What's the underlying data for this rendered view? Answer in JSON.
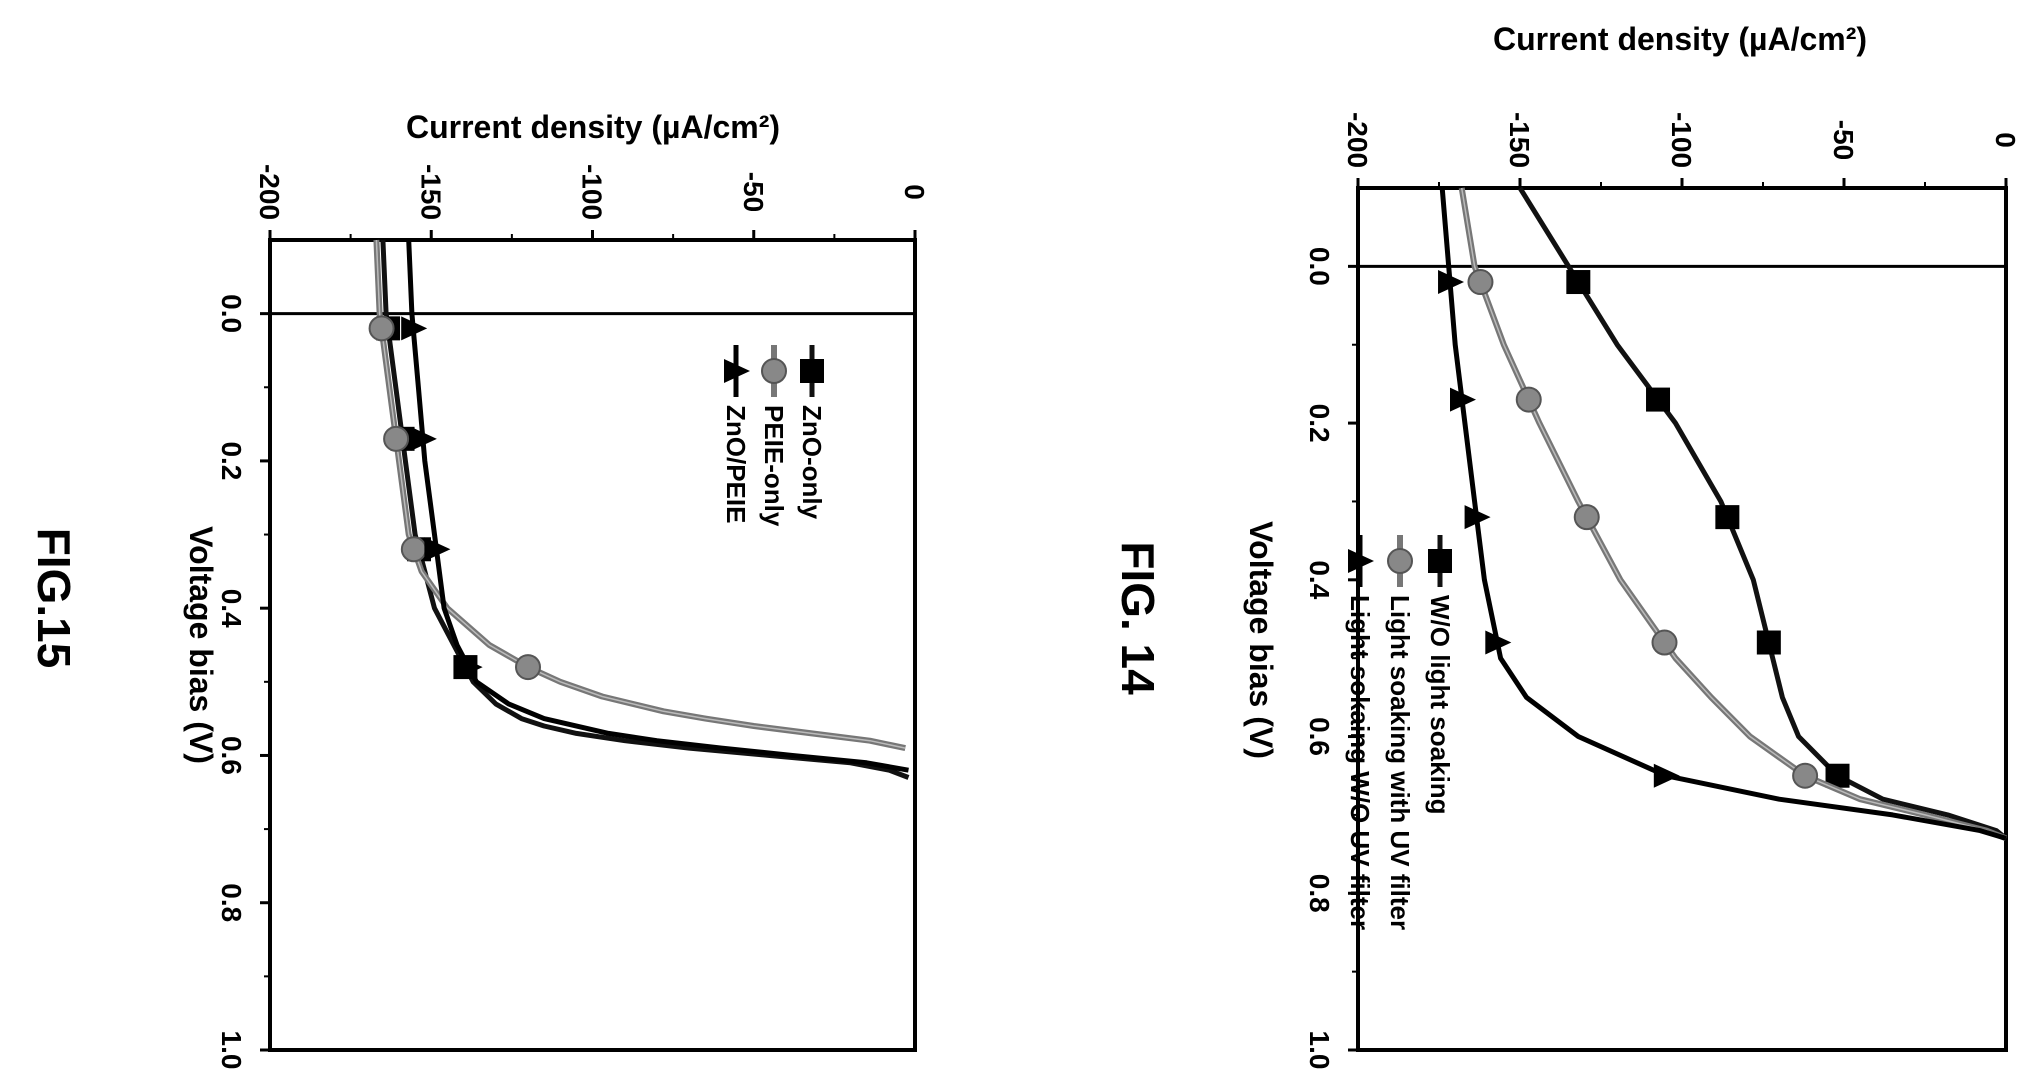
{
  "chart_data": [
    {
      "type": "line",
      "caption": "FIG.15",
      "xlabel": "Voltage bias (V)",
      "ylabel": "Current density (µA/cm²)",
      "xlim": [
        -0.1,
        1.0
      ],
      "ylim": [
        -200,
        0
      ],
      "x_ticks": [
        "0.0",
        "0.2",
        "0.4",
        "0.6",
        "0.8",
        "1.0"
      ],
      "y_ticks": [
        "-200",
        "-150",
        "-100",
        "-50",
        "0"
      ],
      "legend_position": "upper",
      "series": [
        {
          "name": "ZnO-only",
          "marker": "square",
          "color": "#111111",
          "x": [
            -0.1,
            0.0,
            0.1,
            0.2,
            0.3,
            0.4,
            0.45,
            0.5,
            0.53,
            0.55,
            0.56,
            0.57,
            0.58,
            0.59,
            0.6,
            0.61,
            0.62,
            0.63
          ],
          "y": [
            -165,
            -164,
            -161,
            -158,
            -155,
            -149,
            -143,
            -137,
            -130,
            -122,
            -115,
            -105,
            -90,
            -70,
            -45,
            -20,
            -8,
            -2
          ],
          "marker_x": [
            0.02,
            0.17,
            0.32,
            0.48
          ]
        },
        {
          "name": "PEIE-only",
          "marker": "circle",
          "color": "#777777",
          "x": [
            -0.1,
            0.0,
            0.1,
            0.2,
            0.3,
            0.35,
            0.4,
            0.45,
            0.48,
            0.5,
            0.52,
            0.54,
            0.55,
            0.56,
            0.57,
            0.58,
            0.59
          ],
          "y": [
            -167,
            -166,
            -163,
            -160,
            -157,
            -153,
            -145,
            -132,
            -120,
            -110,
            -97,
            -78,
            -65,
            -50,
            -32,
            -14,
            -3
          ],
          "marker_x": [
            0.02,
            0.17,
            0.32,
            0.48
          ]
        },
        {
          "name": "ZnO/PEIE",
          "marker": "triangle",
          "color": "#000000",
          "x": [
            -0.1,
            0.0,
            0.1,
            0.2,
            0.3,
            0.4,
            0.45,
            0.5,
            0.53,
            0.55,
            0.57,
            0.58,
            0.59,
            0.6,
            0.61,
            0.62
          ],
          "y": [
            -157,
            -156,
            -154,
            -152,
            -149,
            -146,
            -142,
            -136,
            -126,
            -115,
            -95,
            -80,
            -60,
            -38,
            -15,
            -2
          ],
          "marker_x": [
            0.02,
            0.17,
            0.32,
            0.48
          ]
        }
      ]
    },
    {
      "type": "line",
      "caption": "FIG. 14",
      "xlabel": "Voltage bias (V)",
      "ylabel": "Current density (µA/cm²)",
      "xlim": [
        -0.1,
        1.0
      ],
      "ylim": [
        -200,
        0
      ],
      "x_ticks": [
        "0.0",
        "0.2",
        "0.4",
        "0.6",
        "0.8",
        "1.0"
      ],
      "y_ticks": [
        "-200",
        "-150",
        "-100",
        "-50",
        "0"
      ],
      "legend_position": "lower",
      "series": [
        {
          "name": "W/O light soaking",
          "marker": "square",
          "color": "#111111",
          "x": [
            -0.1,
            0.0,
            0.1,
            0.2,
            0.3,
            0.4,
            0.5,
            0.55,
            0.6,
            0.65,
            0.68,
            0.7,
            0.72,
            0.73
          ],
          "y": [
            -150,
            -135,
            -120,
            -102,
            -88,
            -78,
            -72,
            -69,
            -64,
            -52,
            -38,
            -18,
            -3,
            0
          ],
          "marker_x": [
            0.02,
            0.17,
            0.32,
            0.48,
            0.65
          ]
        },
        {
          "name": "Light soaking with UV filter",
          "marker": "circle",
          "color": "#777777",
          "x": [
            -0.1,
            0.0,
            0.1,
            0.2,
            0.3,
            0.4,
            0.5,
            0.55,
            0.6,
            0.65,
            0.68,
            0.7,
            0.72,
            0.73
          ],
          "y": [
            -168,
            -164,
            -155,
            -144,
            -132,
            -119,
            -102,
            -91,
            -79,
            -62,
            -45,
            -25,
            -6,
            0
          ],
          "marker_x": [
            0.02,
            0.17,
            0.32,
            0.48,
            0.65
          ]
        },
        {
          "name": "Light sokaing W/O UV filter",
          "marker": "triangle",
          "color": "#000000",
          "x": [
            -0.1,
            0.0,
            0.1,
            0.2,
            0.3,
            0.4,
            0.5,
            0.55,
            0.6,
            0.65,
            0.68,
            0.7,
            0.72,
            0.73
          ],
          "y": [
            -174,
            -172,
            -170,
            -167,
            -164,
            -161,
            -156,
            -148,
            -132,
            -105,
            -70,
            -35,
            -8,
            0
          ],
          "marker_x": [
            0.02,
            0.17,
            0.32,
            0.48,
            0.65
          ]
        }
      ]
    }
  ]
}
